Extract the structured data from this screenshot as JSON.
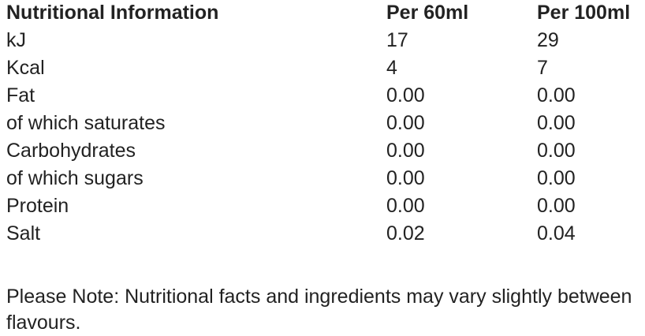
{
  "table": {
    "header": [
      "Nutritional Information",
      "Per 60ml",
      "Per 100ml"
    ],
    "rows": [
      [
        "kJ",
        "17",
        "29"
      ],
      [
        "Kcal",
        "4",
        "7"
      ],
      [
        "Fat",
        "0.00",
        "0.00"
      ],
      [
        "of which saturates",
        "0.00",
        "0.00"
      ],
      [
        "Carbohydrates",
        "0.00",
        "0.00"
      ],
      [
        "of which sugars",
        "0.00",
        "0.00"
      ],
      [
        "Protein",
        "0.00",
        "0.00"
      ],
      [
        "Salt",
        "0.02",
        "0.04"
      ]
    ]
  },
  "note": "Please Note: Nutritional facts and ingredients may vary slightly between flavours."
}
